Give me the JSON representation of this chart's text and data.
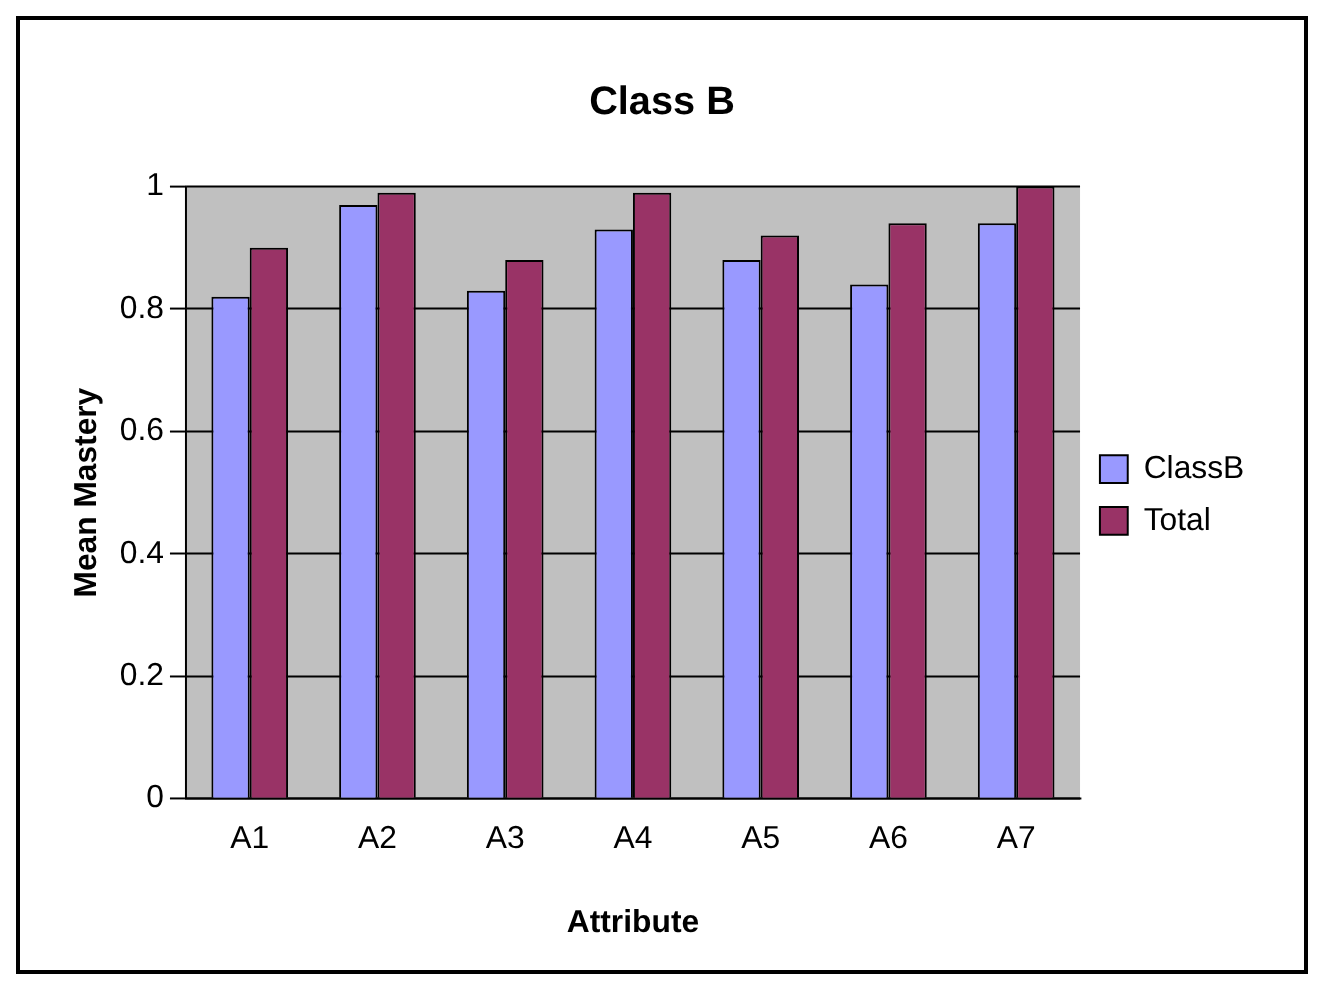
{
  "chart_data": {
    "type": "bar",
    "title": "Class B",
    "xlabel": "Attribute",
    "ylabel": "Mean Mastery",
    "categories": [
      "A1",
      "A2",
      "A3",
      "A4",
      "A5",
      "A6",
      "A7"
    ],
    "series": [
      {
        "name": "ClassB",
        "color": "#9999ff",
        "values": [
          0.82,
          0.97,
          0.83,
          0.93,
          0.88,
          0.84,
          0.94
        ]
      },
      {
        "name": "Total",
        "color": "#993366",
        "values": [
          0.9,
          0.99,
          0.88,
          0.99,
          0.92,
          0.94,
          1.0
        ]
      }
    ],
    "ylim": [
      0,
      1
    ],
    "yticks": [
      0,
      0.2,
      0.4,
      0.6,
      0.8,
      1
    ],
    "grid": "y",
    "legend": "right"
  }
}
